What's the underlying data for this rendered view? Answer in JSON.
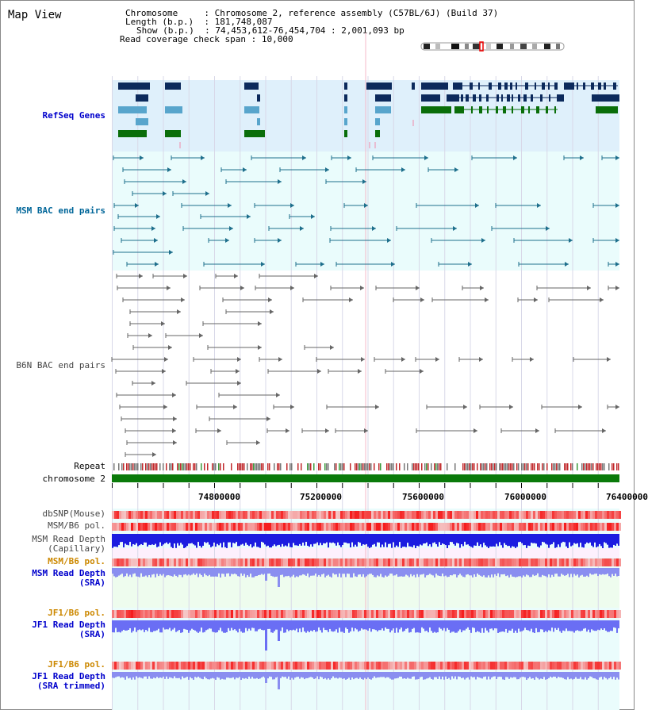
{
  "title": "Map View",
  "info": {
    "chromosome_key": "Chromosome",
    "chromosome_val": "Chromosome 2, reference assembly (C57BL/6J) (Build 37)",
    "length_key": "Length (b.p.)",
    "length_val": "181,748,087",
    "show_key": "Show (b.p.)",
    "show_val": "74,453,612-76,454,704 : 2,001,093 bp",
    "span_key": "Read coverage check span",
    "span_val": "10,000"
  },
  "tracks": {
    "refseq": "RefSeq Genes",
    "msm_bac": "MSM BAC end pairs",
    "b6n_bac": "B6N BAC end pairs",
    "repeat": "Repeat",
    "chromosome": "chromosome 2",
    "dbsnp": "dbSNP(Mouse)",
    "msm_b6_pol_1": "MSM/B6 pol.",
    "msm_read_cap_1": "MSM Read Depth",
    "msm_read_cap_2": "(Capillary)",
    "msm_b6_pol_2": "MSM/B6 pol.",
    "msm_read_sra_1": "MSM Read Depth",
    "msm_read_sra_2": "(SRA)",
    "jf1_b6_pol_1": "JF1/B6 pol.",
    "jf1_read_sra_1": "JF1 Read Depth",
    "jf1_read_sra_2": "(SRA)",
    "jf1_b6_pol_2": "JF1/B6 pol.",
    "jf1_trim_1": "JF1 Read Depth",
    "jf1_trim_2": "(SRA trimmed)"
  },
  "axis_ticks": [
    "74800000",
    "75200000",
    "75600000",
    "76000000",
    "76400000"
  ],
  "colors": {
    "refseq_label": "#0000cc",
    "msm_label": "#006699",
    "b6n_label": "#444444",
    "orange_label": "#cc8800",
    "blue_label": "#0000cc",
    "chromosome_bar": "#0a7a0a",
    "refseq_bg": "#dff0fb",
    "bac_bg": "#eafcfc"
  }
}
